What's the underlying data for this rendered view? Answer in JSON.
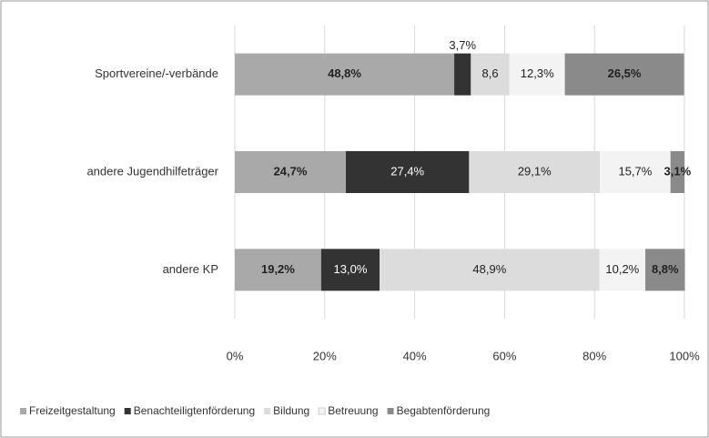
{
  "chart_data": {
    "type": "stacked_bar_horizontal",
    "categories": [
      "Sportvereine/-verbände",
      "andere Jugendhilfeträger",
      "andere KP"
    ],
    "series": [
      {
        "name": "Freizeitgestaltung",
        "color": "#a9a9a9",
        "values": [
          48.8,
          24.7,
          19.2
        ],
        "value_labels": [
          "48,8%",
          "24,7%",
          "19,2%"
        ]
      },
      {
        "name": "Benachteiligtenförderung",
        "color": "#333333",
        "values": [
          3.7,
          27.4,
          13.0
        ],
        "value_labels": [
          "3,7%",
          "27,4%",
          "13,0%"
        ]
      },
      {
        "name": "Bildung",
        "color": "#dcdcdc",
        "values": [
          8.6,
          29.1,
          48.9
        ],
        "value_labels": [
          "8,6",
          "29,1%",
          "48,9%"
        ]
      },
      {
        "name": "Betreuung",
        "color": "#f3f3f3",
        "values": [
          12.3,
          15.7,
          10.2
        ],
        "value_labels": [
          "12,3%",
          "15,7%",
          "10,2%"
        ]
      },
      {
        "name": "Begabtenförderung",
        "color": "#8a8a8a",
        "values": [
          26.5,
          3.1,
          8.8
        ],
        "value_labels": [
          "26,5%",
          "3,1%",
          "8,8%"
        ]
      }
    ],
    "xlim": [
      0,
      100
    ],
    "xticks": [
      {
        "value": 0,
        "label": "0%"
      },
      {
        "value": 20,
        "label": "20%"
      },
      {
        "value": 40,
        "label": "40%"
      },
      {
        "value": 60,
        "label": "60%"
      },
      {
        "value": 80,
        "label": "80%"
      },
      {
        "value": 100,
        "label": "100%"
      }
    ],
    "grid": true,
    "legend": "bottom"
  }
}
